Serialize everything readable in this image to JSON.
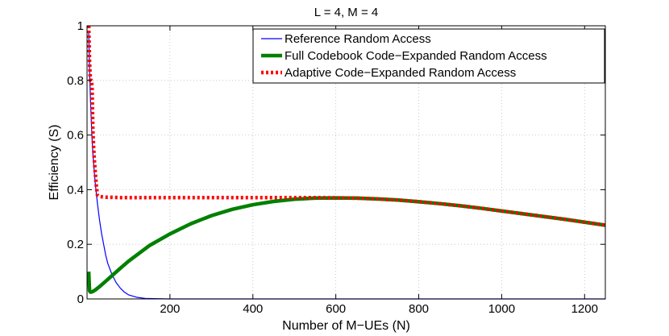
{
  "chart_data": {
    "type": "line",
    "title": "L = 4, M = 4",
    "xlabel": "Number of M−UEs (N)",
    "ylabel": "Efficiency (S)",
    "xlim": [
      0,
      1250
    ],
    "ylim": [
      0,
      1
    ],
    "xticks": [
      200,
      400,
      600,
      800,
      1000,
      1200
    ],
    "xtick_labels": [
      "200",
      "400",
      "600",
      "800",
      "1000",
      "1200"
    ],
    "yticks": [
      0,
      0.2,
      0.4,
      0.6,
      0.8,
      1
    ],
    "ytick_labels": [
      "0",
      "0.2",
      "0.4",
      "0.6",
      "0.8",
      "1"
    ],
    "grid": true,
    "legend_position": "top-right",
    "series": [
      {
        "name": "Reference Random Access",
        "color": "#0000ff",
        "style": "solid-thin",
        "x": [
          4,
          6,
          8,
          10,
          12,
          15,
          20,
          25,
          30,
          35,
          40,
          45,
          50,
          60,
          70,
          80,
          90,
          100,
          120,
          140,
          160,
          200,
          300,
          600,
          1250
        ],
        "y": [
          0.98,
          0.84,
          0.74,
          0.66,
          0.59,
          0.51,
          0.42,
          0.35,
          0.29,
          0.24,
          0.2,
          0.16,
          0.13,
          0.09,
          0.06,
          0.04,
          0.025,
          0.015,
          0.006,
          0.002,
          0.001,
          0,
          0,
          0,
          0
        ]
      },
      {
        "name": "Full Codebook Code−Expanded Random Access",
        "color": "#008000",
        "style": "solid-thick",
        "x": [
          4,
          6,
          8,
          10,
          15,
          20,
          30,
          40,
          60,
          80,
          100,
          150,
          200,
          250,
          300,
          350,
          400,
          450,
          500,
          550,
          600,
          650,
          700,
          750,
          800,
          850,
          900,
          950,
          1000,
          1050,
          1100,
          1150,
          1200,
          1250
        ],
        "y": [
          0.1,
          0.03,
          0.025,
          0.025,
          0.028,
          0.033,
          0.045,
          0.058,
          0.085,
          0.112,
          0.138,
          0.195,
          0.238,
          0.275,
          0.305,
          0.328,
          0.345,
          0.357,
          0.365,
          0.369,
          0.37,
          0.369,
          0.366,
          0.362,
          0.356,
          0.349,
          0.341,
          0.332,
          0.322,
          0.312,
          0.302,
          0.292,
          0.281,
          0.27
        ]
      },
      {
        "name": "Adaptive Code−Expanded Random Access",
        "color": "#ff0000",
        "style": "dotted-thick",
        "x": [
          4,
          6,
          8,
          10,
          12,
          14,
          16,
          18,
          20,
          22,
          25,
          30,
          40,
          50,
          60,
          80,
          100,
          150,
          200,
          250,
          300,
          350,
          400,
          450,
          500,
          550,
          600,
          650,
          700,
          750,
          800,
          850,
          900,
          950,
          1000,
          1050,
          1100,
          1150,
          1200,
          1250
        ],
        "y": [
          1.0,
          0.87,
          0.8,
          0.8,
          0.78,
          0.62,
          0.55,
          0.5,
          0.46,
          0.42,
          0.38,
          0.375,
          0.373,
          0.372,
          0.372,
          0.371,
          0.371,
          0.371,
          0.371,
          0.371,
          0.371,
          0.371,
          0.371,
          0.371,
          0.371,
          0.371,
          0.37,
          0.369,
          0.366,
          0.362,
          0.356,
          0.349,
          0.341,
          0.332,
          0.322,
          0.312,
          0.302,
          0.292,
          0.281,
          0.27
        ]
      }
    ]
  }
}
